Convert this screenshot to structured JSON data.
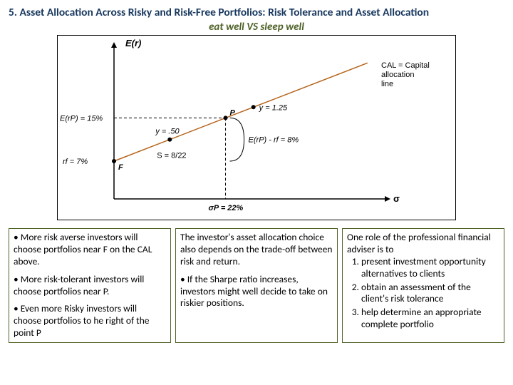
{
  "title": "5. Asset Allocation Across Risky and Risk-Free Portfolios: Risk Tolerance and Asset Allocation",
  "subtitle": "eat well VS sleep well",
  "chart": {
    "type": "line-diagram",
    "background_color": "#ffffff",
    "border_color": "#000000",
    "axis_color": "#000000",
    "cal_line_color": "#b5651d",
    "cal_line_width": 1.5,
    "dashed_color": "#000000",
    "y_axis_label": "E(r)",
    "x_axis_label": "σ",
    "cal_label": "CAL = Capital\nallocation\nline",
    "rf_label": "rf = 7%",
    "F_label": "F",
    "Erp_label": "E(rP) = 15%",
    "P_label": "P",
    "y_point5": "y = .50",
    "y_1_25": "y = 1.25",
    "slope_label": "S = 8/22",
    "Erp_minus_rf": "E(rP) - rf = 8%",
    "sigma_p_label": "σP = 22%",
    "axis_font_size": 13,
    "label_font_size": 11,
    "rf_value_x": 0,
    "rf_value_y": 7,
    "P_sigma": 22,
    "P_Er": 15,
    "xlim": [
      0,
      52
    ],
    "ylim": [
      0,
      28
    ],
    "cal_end_x": 50,
    "cal_end_y": 25.18
  },
  "col1": {
    "p1": "• More risk averse investors will choose portfolios near F on the CAL above.",
    "p2": "• More risk-tolerant investors will choose portfolios near P.",
    "p3": "• Even more Risky investors will choose portfolios to he right of the point P"
  },
  "col2": {
    "p1": "The investor's asset allocation choice also depends on the trade-off between risk and return.",
    "p2": "• If the Sharpe ratio increases, investors might well decide to take on riskier positions."
  },
  "col3": {
    "lead": "One role of the professional financial adviser is to",
    "li1": "present investment opportunity alternatives to clients",
    "li2": "obtain an assessment of the client's risk tolerance",
    "li3": "help determine an appropriate complete portfolio"
  }
}
